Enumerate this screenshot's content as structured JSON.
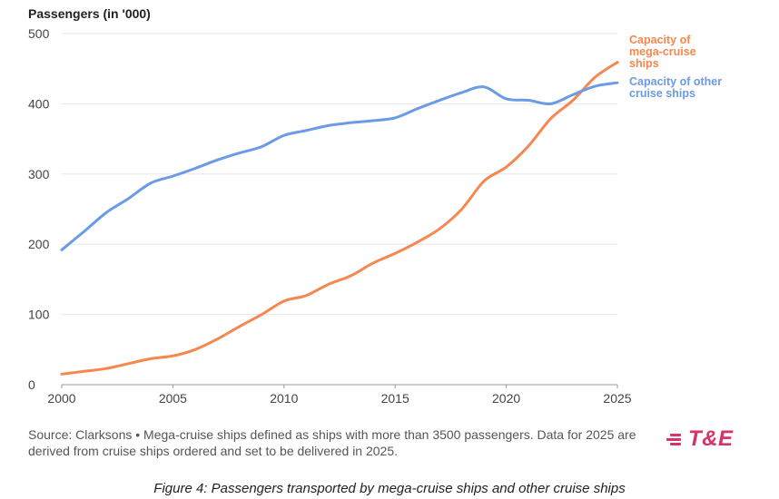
{
  "chart_data": {
    "type": "line",
    "title": "",
    "ylabel": "Passengers (in '000)",
    "xlabel": "",
    "xlim": [
      2000,
      2025
    ],
    "ylim": [
      0,
      500
    ],
    "xticks": [
      2000,
      2005,
      2010,
      2015,
      2020,
      2025
    ],
    "yticks": [
      0,
      100,
      200,
      300,
      400,
      500
    ],
    "grid": true,
    "series": [
      {
        "name": "Capacity of mega-cruise ships",
        "label_lines": [
          "Capacity of",
          "mega-cruise",
          "ships"
        ],
        "color": "#f5874f",
        "x": [
          2000,
          2001,
          2002,
          2003,
          2004,
          2005,
          2006,
          2007,
          2008,
          2009,
          2010,
          2011,
          2012,
          2013,
          2014,
          2015,
          2016,
          2017,
          2018,
          2019,
          2020,
          2021,
          2022,
          2023,
          2024,
          2025
        ],
        "values": [
          15,
          19,
          23,
          30,
          37,
          41,
          50,
          65,
          83,
          100,
          119,
          127,
          143,
          155,
          173,
          187,
          203,
          222,
          250,
          290,
          310,
          340,
          379,
          405,
          438,
          459
        ]
      },
      {
        "name": "Capacity of other cruise ships",
        "label_lines": [
          "Capacity of other",
          "cruise ships"
        ],
        "color": "#6b9be6",
        "x": [
          2000,
          2001,
          2002,
          2003,
          2004,
          2005,
          2006,
          2007,
          2008,
          2009,
          2010,
          2011,
          2012,
          2013,
          2014,
          2015,
          2016,
          2017,
          2018,
          2019,
          2020,
          2021,
          2022,
          2023,
          2024,
          2025
        ],
        "values": [
          192,
          218,
          245,
          265,
          287,
          297,
          308,
          320,
          330,
          339,
          355,
          362,
          369,
          373,
          376,
          380,
          393,
          405,
          416,
          424,
          407,
          405,
          400,
          413,
          425,
          430
        ]
      }
    ]
  },
  "source_note": "Source: Clarksons • Mega-cruise ships defined as ships with more than 3500 passengers. Data for 2025 are derived from cruise ships ordered and set to be delivered in 2025.",
  "logo": {
    "text": "T&E",
    "color": "#d6336c"
  },
  "caption": "Figure 4: Passengers transported by mega-cruise ships and other cruise ships"
}
